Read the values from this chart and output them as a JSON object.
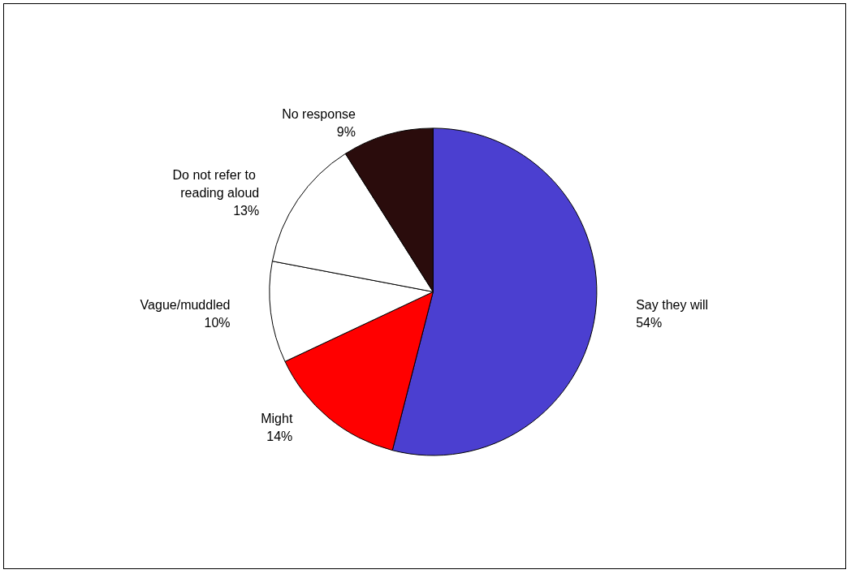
{
  "chart_data": {
    "type": "pie",
    "categories": [
      "Say they will",
      "Might",
      "Vague/muddled",
      "Do not refer to reading aloud",
      "No response"
    ],
    "values": [
      54,
      14,
      10,
      13,
      9
    ],
    "value_labels": [
      "54%",
      "14%",
      "10%",
      "13%",
      "9%"
    ],
    "colors": [
      "#4b3fd0",
      "#ff0000",
      "#ffffff",
      "#ffffff",
      "#2a0c0c"
    ],
    "legend": false
  }
}
